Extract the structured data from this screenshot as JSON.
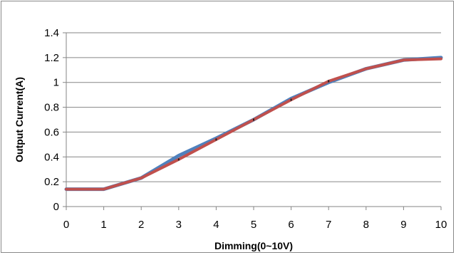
{
  "chart_data": {
    "type": "line",
    "title": "",
    "xlabel": "Dimming(0~10V)",
    "ylabel": "Output Current(A)",
    "xlim": [
      0,
      10
    ],
    "ylim": [
      0,
      1.4
    ],
    "x_ticks": [
      "0",
      "1",
      "2",
      "3",
      "4",
      "5",
      "6",
      "7",
      "8",
      "9",
      "10"
    ],
    "y_ticks": [
      "0",
      "0.2",
      "0.4",
      "0.6",
      "0.8",
      "1",
      "1.2",
      "1.4"
    ],
    "y_tick_values": [
      0,
      0.2,
      0.4,
      0.6,
      0.8,
      1.0,
      1.2,
      1.4
    ],
    "grid": "horizontal",
    "legend": "none",
    "series": [
      {
        "color": "#4f81bd",
        "x": [
          0,
          1,
          2,
          3,
          4,
          5,
          6,
          7,
          8,
          9,
          10
        ],
        "values": [
          0.14,
          0.14,
          0.23,
          0.41,
          0.55,
          0.7,
          0.87,
          1.0,
          1.11,
          1.18,
          1.2
        ]
      },
      {
        "color": "#c0504d",
        "x": [
          0,
          1,
          2,
          3,
          4,
          5,
          6,
          7,
          8,
          9,
          10
        ],
        "values": [
          0.14,
          0.14,
          0.23,
          0.38,
          0.54,
          0.7,
          0.86,
          1.01,
          1.11,
          1.18,
          1.19
        ]
      }
    ]
  }
}
